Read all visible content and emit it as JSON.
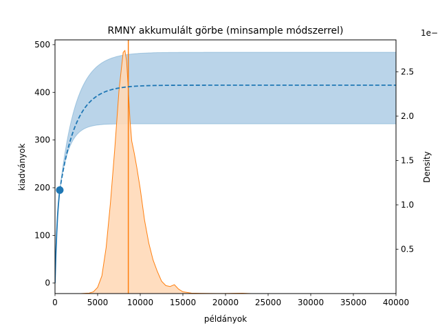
{
  "chart_data": {
    "type": "line",
    "title": "RMNY akkumulált görbe (minsample módszerrel)",
    "xlabel": "példányok",
    "ylabel": "kiadványok",
    "y2label": "Density",
    "y2_offset_text": "1e−",
    "xlim": [
      0,
      40000
    ],
    "ylim": [
      -22,
      510
    ],
    "y2lim": [
      0,
      2.86
    ],
    "x_ticks": [
      0,
      5000,
      10000,
      15000,
      20000,
      25000,
      30000,
      35000,
      40000
    ],
    "y_ticks": [
      0,
      100,
      200,
      300,
      400,
      500
    ],
    "y2_ticks": [
      0.5,
      1.0,
      1.5,
      2.0,
      2.5
    ],
    "y2_tick_labels": [
      "0.5",
      "1.0",
      "1.5",
      "2.0",
      "2.5"
    ],
    "grid": false,
    "legend": "none",
    "colors": {
      "blue": "#1f77b4",
      "band": "#a6c8e3",
      "orange": "#ff7f0e",
      "orange_fill": "#ffd9b8"
    },
    "observed_curve": {
      "x": [
        0,
        100,
        200,
        300,
        400,
        500,
        560
      ],
      "y": [
        0,
        60,
        105,
        140,
        165,
        185,
        195
      ]
    },
    "observed_point": {
      "x": 560,
      "y": 195
    },
    "extrapolation": {
      "asymptote": 415,
      "rate": 0.00052,
      "x_start": 560,
      "x_end": 40000
    },
    "confidence_band": {
      "upper_asymptote": 484,
      "upper_rate": 0.00052,
      "lower_asymptote": 334,
      "lower_rate": 0.0009,
      "x_start": 560,
      "x_end": 40000
    },
    "vertical_line_x": 8600,
    "density": {
      "x": [
        3000,
        4000,
        4500,
        5000,
        5500,
        6000,
        6500,
        7000,
        7500,
        7800,
        8000,
        8200,
        8400,
        8600,
        8800,
        9000,
        9300,
        9600,
        10000,
        10500,
        11000,
        11500,
        12000,
        12500,
        13000,
        13500,
        14000,
        14500,
        15000,
        16000,
        17000,
        18000,
        19000,
        20000,
        21000,
        22000,
        23000
      ],
      "y": [
        0,
        0.005,
        0.02,
        0.07,
        0.2,
        0.52,
        1.02,
        1.62,
        2.28,
        2.55,
        2.72,
        2.74,
        2.62,
        2.3,
        1.95,
        1.72,
        1.58,
        1.42,
        1.18,
        0.83,
        0.57,
        0.38,
        0.25,
        0.14,
        0.09,
        0.08,
        0.1,
        0.05,
        0.02,
        0.005,
        0.003,
        0.002,
        0.001,
        0.001,
        0.003,
        0.004,
        0
      ]
    }
  }
}
